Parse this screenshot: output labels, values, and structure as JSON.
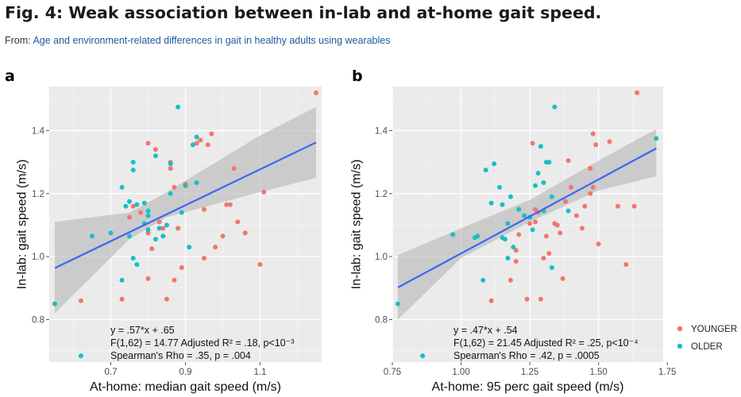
{
  "header": {
    "title": "Fig. 4: Weak association between in-lab and at-home gait speed.",
    "from_label": "From:",
    "source_link": "Age and environment-related differences in gait in healthy adults using wearables"
  },
  "colors": {
    "younger": "#f0766d",
    "older": "#19bfc4",
    "fit_line": "#3c66f2",
    "band": "#b8b8b8",
    "panel_bg": "#ebebeb"
  },
  "legend": {
    "items": [
      "YOUNGER",
      "OLDER"
    ]
  },
  "chart_data": [
    {
      "panel": "a",
      "type": "scatter",
      "xlabel": "At-home: median gait speed (m/s)",
      "ylabel": "In-lab: gait speed (m/s)",
      "xlim": [
        0.535,
        1.265
      ],
      "ylim": [
        0.665,
        1.54
      ],
      "xticks": [
        {
          "v": 0.7,
          "label": "0.7"
        },
        {
          "v": 0.9,
          "label": "0.9"
        },
        {
          "v": 1.1,
          "label": "1.1"
        }
      ],
      "yticks": [
        {
          "v": 0.8,
          "label": "0.8"
        },
        {
          "v": 1.0,
          "label": "1.0"
        },
        {
          "v": 1.2,
          "label": "1.2"
        },
        {
          "v": 1.4,
          "label": "1.4"
        }
      ],
      "grid": true,
      "fit": {
        "slope": 0.57,
        "intercept": 0.65,
        "x_range": [
          0.55,
          1.25
        ]
      },
      "band": [
        [
          0.55,
          0.82,
          1.11
        ],
        [
          0.75,
          1.055,
          1.14
        ],
        [
          0.85,
          1.125,
          1.205
        ],
        [
          1.1,
          1.205,
          1.385
        ],
        [
          1.25,
          1.25,
          1.475
        ]
      ],
      "annotations": [
        "y = .57*x + .65",
        "F(1,62) = 14.77  Adjusted R² = .18, p<10⁻³",
        "Spearman's Rho = .35, p = .004"
      ],
      "series": [
        {
          "name": "YOUNGER",
          "points": [
            [
              0.62,
              0.86
            ],
            [
              0.73,
              0.865
            ],
            [
              0.75,
              1.125
            ],
            [
              0.76,
              1.16
            ],
            [
              0.78,
              1.14
            ],
            [
              0.8,
              1.36
            ],
            [
              0.8,
              1.075
            ],
            [
              0.8,
              0.93
            ],
            [
              0.81,
              1.025
            ],
            [
              0.82,
              1.34
            ],
            [
              0.83,
              1.11
            ],
            [
              0.84,
              1.09
            ],
            [
              0.85,
              0.865
            ],
            [
              0.86,
              1.28
            ],
            [
              0.86,
              1.3
            ],
            [
              0.87,
              0.925
            ],
            [
              0.87,
              1.22
            ],
            [
              0.88,
              1.09
            ],
            [
              0.89,
              0.965
            ],
            [
              0.9,
              1.23
            ],
            [
              0.93,
              1.36
            ],
            [
              0.94,
              1.37
            ],
            [
              0.95,
              1.15
            ],
            [
              0.95,
              0.995
            ],
            [
              0.96,
              1.355
            ],
            [
              0.97,
              1.39
            ],
            [
              0.98,
              1.03
            ],
            [
              1.0,
              1.065
            ],
            [
              1.01,
              1.165
            ],
            [
              1.02,
              1.165
            ],
            [
              1.03,
              1.28
            ],
            [
              1.04,
              1.11
            ],
            [
              1.06,
              1.075
            ],
            [
              1.1,
              0.975
            ],
            [
              1.11,
              1.205
            ],
            [
              1.25,
              1.52
            ]
          ]
        },
        {
          "name": "OLDER",
          "points": [
            [
              0.55,
              0.85
            ],
            [
              0.62,
              0.685
            ],
            [
              0.65,
              1.065
            ],
            [
              0.7,
              1.075
            ],
            [
              0.73,
              1.22
            ],
            [
              0.73,
              0.925
            ],
            [
              0.74,
              1.16
            ],
            [
              0.75,
              1.175
            ],
            [
              0.75,
              1.065
            ],
            [
              0.76,
              1.3
            ],
            [
              0.76,
              1.275
            ],
            [
              0.76,
              0.995
            ],
            [
              0.77,
              1.165
            ],
            [
              0.77,
              0.975
            ],
            [
              0.79,
              1.105
            ],
            [
              0.79,
              1.17
            ],
            [
              0.8,
              1.13
            ],
            [
              0.8,
              1.145
            ],
            [
              0.8,
              1.085
            ],
            [
              0.82,
              1.055
            ],
            [
              0.82,
              1.32
            ],
            [
              0.83,
              1.09
            ],
            [
              0.84,
              1.065
            ],
            [
              0.85,
              1.1
            ],
            [
              0.86,
              1.2
            ],
            [
              0.86,
              1.295
            ],
            [
              0.88,
              1.475
            ],
            [
              0.89,
              1.14
            ],
            [
              0.9,
              1.225
            ],
            [
              0.91,
              1.03
            ],
            [
              0.92,
              1.355
            ],
            [
              0.93,
              1.38
            ],
            [
              0.93,
              1.235
            ]
          ]
        }
      ]
    },
    {
      "panel": "b",
      "type": "scatter",
      "xlabel": "At-home: 95 perc gait speed (m/s)",
      "ylabel": "In-lab: gait speed (m/s)",
      "xlim": [
        0.75,
        1.735
      ],
      "ylim": [
        0.665,
        1.54
      ],
      "xticks": [
        {
          "v": 0.75,
          "label": "0.75"
        },
        {
          "v": 1.0,
          "label": "1.00"
        },
        {
          "v": 1.25,
          "label": "1.25"
        },
        {
          "v": 1.5,
          "label": "1.50"
        },
        {
          "v": 1.75,
          "label": "1.75"
        }
      ],
      "yticks": [
        {
          "v": 0.8,
          "label": "0.8"
        },
        {
          "v": 1.0,
          "label": "1.0"
        },
        {
          "v": 1.2,
          "label": "1.2"
        },
        {
          "v": 1.4,
          "label": "1.4"
        }
      ],
      "grid": true,
      "fit": {
        "slope": 0.47,
        "intercept": 0.54,
        "x_range": [
          0.77,
          1.71
        ]
      },
      "band": [
        [
          0.77,
          0.8,
          1.005
        ],
        [
          1.0,
          0.995,
          1.09
        ],
        [
          1.25,
          1.11,
          1.18
        ],
        [
          1.5,
          1.21,
          1.305
        ],
        [
          1.71,
          1.255,
          1.405
        ]
      ],
      "annotations": [
        "y = .47*x + .54",
        "F(1,62) = 21.45 Adjusted R² = .25, p<10⁻⁴",
        "Spearman's Rho = .42, p = .0005"
      ],
      "series": [
        {
          "name": "YOUNGER",
          "points": [
            [
              1.11,
              0.86
            ],
            [
              1.18,
              0.925
            ],
            [
              1.2,
              1.02
            ],
            [
              1.2,
              0.985
            ],
            [
              1.21,
              1.07
            ],
            [
              1.24,
              0.865
            ],
            [
              1.25,
              1.105
            ],
            [
              1.26,
              1.36
            ],
            [
              1.27,
              1.15
            ],
            [
              1.27,
              1.11
            ],
            [
              1.28,
              1.14
            ],
            [
              1.29,
              0.865
            ],
            [
              1.3,
              0.995
            ],
            [
              1.31,
              1.065
            ],
            [
              1.32,
              1.01
            ],
            [
              1.34,
              1.105
            ],
            [
              1.35,
              1.1
            ],
            [
              1.36,
              1.075
            ],
            [
              1.37,
              0.93
            ],
            [
              1.38,
              1.175
            ],
            [
              1.39,
              1.305
            ],
            [
              1.4,
              1.22
            ],
            [
              1.42,
              1.13
            ],
            [
              1.44,
              1.09
            ],
            [
              1.45,
              1.16
            ],
            [
              1.47,
              1.2
            ],
            [
              1.47,
              1.28
            ],
            [
              1.48,
              1.39
            ],
            [
              1.49,
              1.355
            ],
            [
              1.5,
              1.04
            ],
            [
              1.54,
              1.365
            ],
            [
              1.57,
              1.16
            ],
            [
              1.6,
              0.975
            ],
            [
              1.63,
              1.16
            ],
            [
              1.64,
              1.52
            ],
            [
              1.48,
              1.22
            ]
          ]
        },
        {
          "name": "OLDER",
          "points": [
            [
              0.77,
              0.85
            ],
            [
              0.86,
              0.685
            ],
            [
              0.97,
              1.07
            ],
            [
              1.05,
              1.06
            ],
            [
              1.06,
              1.065
            ],
            [
              1.08,
              0.925
            ],
            [
              1.09,
              1.275
            ],
            [
              1.11,
              1.17
            ],
            [
              1.12,
              1.295
            ],
            [
              1.14,
              1.22
            ],
            [
              1.15,
              1.165
            ],
            [
              1.15,
              1.06
            ],
            [
              1.16,
              1.055
            ],
            [
              1.17,
              1.105
            ],
            [
              1.17,
              0.995
            ],
            [
              1.18,
              1.19
            ],
            [
              1.19,
              1.03
            ],
            [
              1.21,
              1.15
            ],
            [
              1.23,
              1.13
            ],
            [
              1.25,
              1.125
            ],
            [
              1.26,
              1.085
            ],
            [
              1.27,
              1.225
            ],
            [
              1.28,
              1.265
            ],
            [
              1.29,
              1.35
            ],
            [
              1.3,
              1.235
            ],
            [
              1.3,
              1.145
            ],
            [
              1.31,
              1.3
            ],
            [
              1.32,
              1.3
            ],
            [
              1.33,
              0.965
            ],
            [
              1.33,
              1.19
            ],
            [
              1.34,
              1.475
            ],
            [
              1.39,
              1.145
            ],
            [
              1.71,
              1.375
            ]
          ]
        }
      ]
    }
  ],
  "panel_letters": [
    "a",
    "b"
  ]
}
